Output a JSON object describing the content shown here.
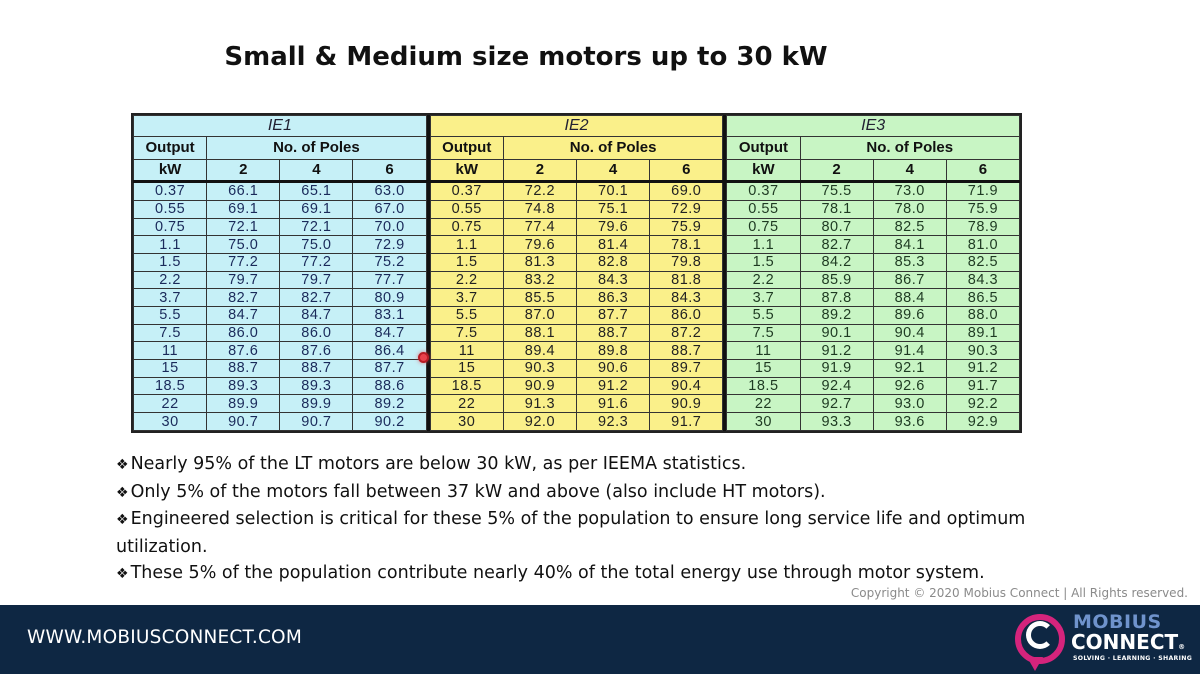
{
  "slide": {
    "title": "Small & Medium size motors up to 30 kW"
  },
  "table": {
    "output_label": "Output",
    "unit_label": "kW",
    "poles_label": "No. of Poles",
    "poles": [
      "2",
      "4",
      "6"
    ],
    "blocks": [
      {
        "grade": "IE1",
        "color": "#c6f0f7",
        "rows": [
          [
            "0.37",
            "66.1",
            "65.1",
            "63.0"
          ],
          [
            "0.55",
            "69.1",
            "69.1",
            "67.0"
          ],
          [
            "0.75",
            "72.1",
            "72.1",
            "70.0"
          ],
          [
            "1.1",
            "75.0",
            "75.0",
            "72.9"
          ],
          [
            "1.5",
            "77.2",
            "77.2",
            "75.2"
          ],
          [
            "2.2",
            "79.7",
            "79.7",
            "77.7"
          ],
          [
            "3.7",
            "82.7",
            "82.7",
            "80.9"
          ],
          [
            "5.5",
            "84.7",
            "84.7",
            "83.1"
          ],
          [
            "7.5",
            "86.0",
            "86.0",
            "84.7"
          ],
          [
            "11",
            "87.6",
            "87.6",
            "86.4"
          ],
          [
            "15",
            "88.7",
            "88.7",
            "87.7"
          ],
          [
            "18.5",
            "89.3",
            "89.3",
            "88.6"
          ],
          [
            "22",
            "89.9",
            "89.9",
            "89.2"
          ],
          [
            "30",
            "90.7",
            "90.7",
            "90.2"
          ]
        ]
      },
      {
        "grade": "IE2",
        "color": "#faf08a",
        "rows": [
          [
            "0.37",
            "72.2",
            "70.1",
            "69.0"
          ],
          [
            "0.55",
            "74.8",
            "75.1",
            "72.9"
          ],
          [
            "0.75",
            "77.4",
            "79.6",
            "75.9"
          ],
          [
            "1.1",
            "79.6",
            "81.4",
            "78.1"
          ],
          [
            "1.5",
            "81.3",
            "82.8",
            "79.8"
          ],
          [
            "2.2",
            "83.2",
            "84.3",
            "81.8"
          ],
          [
            "3.7",
            "85.5",
            "86.3",
            "84.3"
          ],
          [
            "5.5",
            "87.0",
            "87.7",
            "86.0"
          ],
          [
            "7.5",
            "88.1",
            "88.7",
            "87.2"
          ],
          [
            "11",
            "89.4",
            "89.8",
            "88.7"
          ],
          [
            "15",
            "90.3",
            "90.6",
            "89.7"
          ],
          [
            "18.5",
            "90.9",
            "91.2",
            "90.4"
          ],
          [
            "22",
            "91.3",
            "91.6",
            "90.9"
          ],
          [
            "30",
            "92.0",
            "92.3",
            "91.7"
          ]
        ]
      },
      {
        "grade": "IE3",
        "color": "#c8f5c4",
        "rows": [
          [
            "0.37",
            "75.5",
            "73.0",
            "71.9"
          ],
          [
            "0.55",
            "78.1",
            "78.0",
            "75.9"
          ],
          [
            "0.75",
            "80.7",
            "82.5",
            "78.9"
          ],
          [
            "1.1",
            "82.7",
            "84.1",
            "81.0"
          ],
          [
            "1.5",
            "84.2",
            "85.3",
            "82.5"
          ],
          [
            "2.2",
            "85.9",
            "86.7",
            "84.3"
          ],
          [
            "3.7",
            "87.8",
            "88.4",
            "86.5"
          ],
          [
            "5.5",
            "89.2",
            "89.6",
            "88.0"
          ],
          [
            "7.5",
            "90.1",
            "90.4",
            "89.1"
          ],
          [
            "11",
            "91.2",
            "91.4",
            "90.3"
          ],
          [
            "15",
            "91.9",
            "92.1",
            "91.2"
          ],
          [
            "18.5",
            "92.4",
            "92.6",
            "91.7"
          ],
          [
            "22",
            "92.7",
            "93.0",
            "92.2"
          ],
          [
            "30",
            "93.3",
            "93.6",
            "92.9"
          ]
        ]
      }
    ]
  },
  "bullets": {
    "symbol": "❖",
    "items": [
      "Nearly 95% of the LT motors are below 30 kW, as per IEEMA statistics.",
      "Only 5% of the motors fall between 37 kW and above (also include HT motors).",
      "Engineered selection is critical for these 5% of the population to ensure long service life and optimum utilization.",
      "These 5% of the population contribute nearly 40% of the total energy use through motor system."
    ]
  },
  "copyright": "Copyright © 2020 Mobius Connect | All Rights reserved.",
  "footer": {
    "url": "WWW.MOBIUSCONNECT.COM",
    "logo": {
      "line1": "MOBIUS",
      "line2": "CONNECT",
      "registered": "®",
      "tagline": "SOLVING · LEARNING · SHARING"
    },
    "colors": {
      "background": "#0e2743",
      "logo_ring": "#d4247c",
      "logo_mobius": "#6f93cc"
    }
  }
}
